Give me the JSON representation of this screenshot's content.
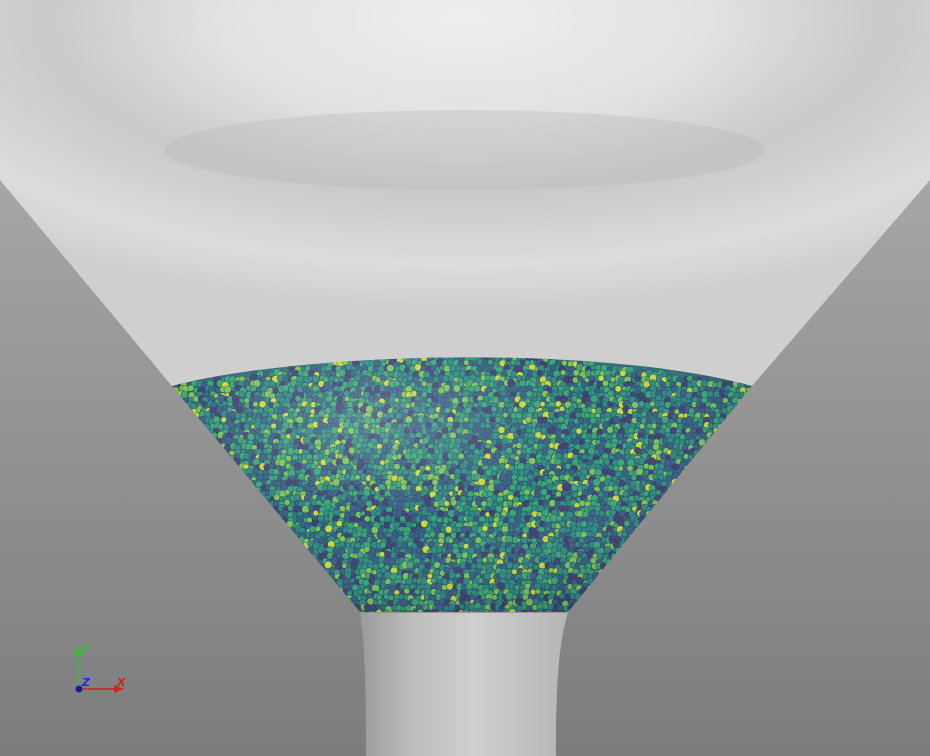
{
  "viewport": {
    "background_color": "#8c8c8c",
    "hopper_color": "#d2d2d2",
    "particle_colormap": [
      "#44407a",
      "#3b5f8a",
      "#2f8a86",
      "#3aa57a",
      "#7cc35a",
      "#c9d83c"
    ]
  },
  "axes_triad": {
    "y_label": "Y",
    "z_label": "Z",
    "x_label": "X",
    "y_color": "#2fbf2f",
    "z_color": "#2a2ad0",
    "x_color": "#d42020"
  }
}
